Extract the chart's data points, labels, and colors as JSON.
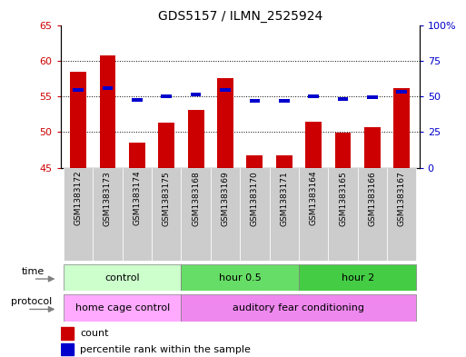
{
  "title": "GDS5157 / ILMN_2525924",
  "samples": [
    "GSM1383172",
    "GSM1383173",
    "GSM1383174",
    "GSM1383175",
    "GSM1383168",
    "GSM1383169",
    "GSM1383170",
    "GSM1383171",
    "GSM1383164",
    "GSM1383165",
    "GSM1383166",
    "GSM1383167"
  ],
  "count_values": [
    58.5,
    60.8,
    48.5,
    51.3,
    53.1,
    57.6,
    46.8,
    46.8,
    51.4,
    49.9,
    50.7,
    56.2
  ],
  "percentile_values": [
    54.5,
    55.7,
    47.3,
    50.0,
    51.2,
    54.6,
    46.8,
    46.9,
    50.0,
    48.4,
    49.2,
    53.5
  ],
  "ylim_left": [
    45,
    65
  ],
  "ylim_right": [
    0,
    100
  ],
  "yticks_left": [
    45,
    50,
    55,
    60,
    65
  ],
  "yticks_right": [
    0,
    25,
    50,
    75,
    100
  ],
  "ytick_labels_right": [
    "0",
    "25",
    "50",
    "75",
    "100%"
  ],
  "count_color": "#cc0000",
  "percentile_color": "#0000cc",
  "grid_color": "#000000",
  "bar_width": 0.55,
  "time_groups": [
    {
      "label": "control",
      "start": 0,
      "end": 3,
      "color": "#ccffcc"
    },
    {
      "label": "hour 0.5",
      "start": 4,
      "end": 7,
      "color": "#66dd66"
    },
    {
      "label": "hour 2",
      "start": 8,
      "end": 11,
      "color": "#44cc44"
    }
  ],
  "protocol_groups": [
    {
      "label": "home cage control",
      "start": 0,
      "end": 3,
      "color": "#ffaaff"
    },
    {
      "label": "auditory fear conditioning",
      "start": 4,
      "end": 11,
      "color": "#ee88ee"
    }
  ],
  "time_label": "time",
  "protocol_label": "protocol",
  "legend_count": "count",
  "legend_percentile": "percentile rank within the sample",
  "bg_color": "#ffffff",
  "tick_bg_color": "#cccccc",
  "border_color": "#aaaaaa"
}
